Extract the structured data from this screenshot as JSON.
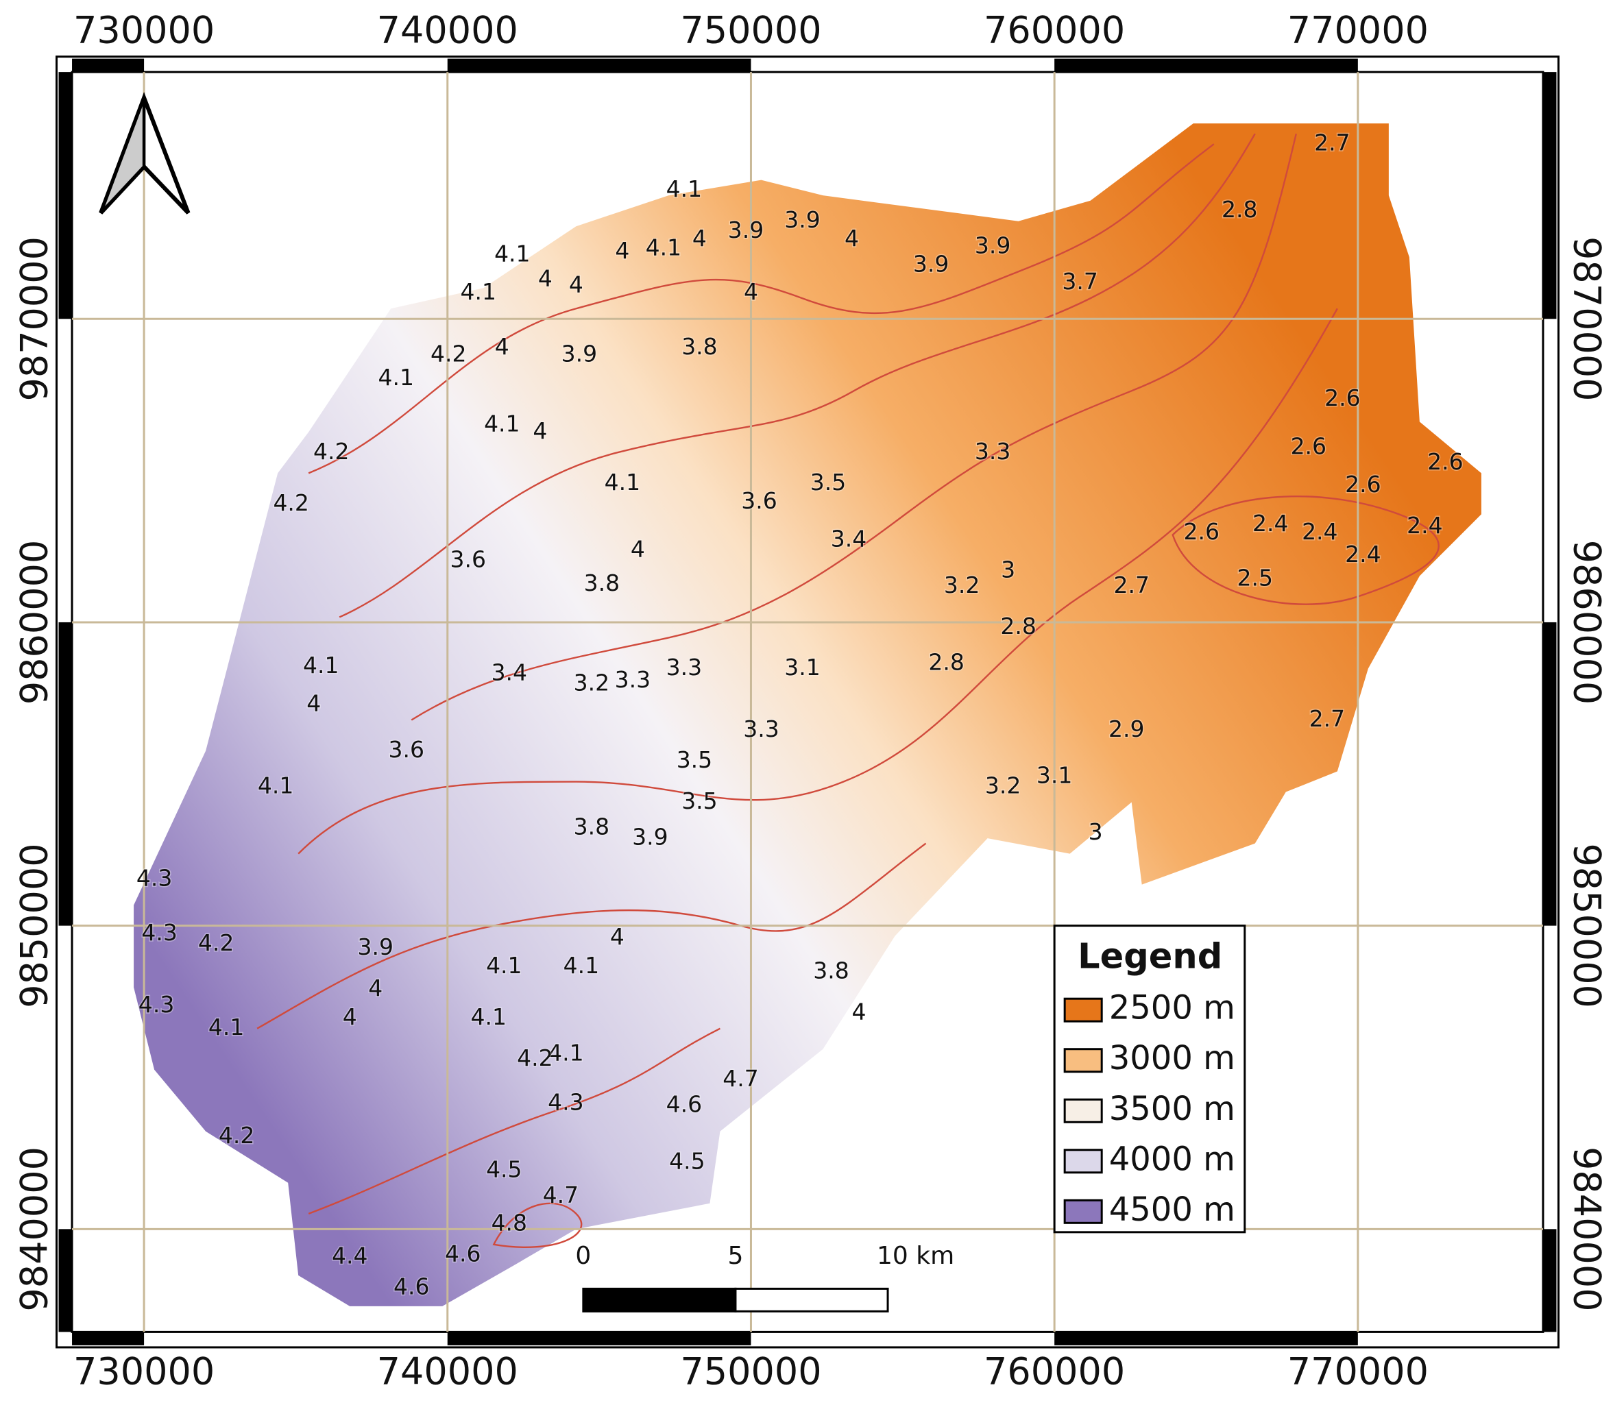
{
  "map": {
    "x_ticks": [
      "730000",
      "740000",
      "750000",
      "760000",
      "770000"
    ],
    "y_ticks": [
      "9870000",
      "9860000",
      "9850000",
      "9840000"
    ],
    "contour_labels": [
      "4.1",
      "4.1",
      "4.1",
      "4",
      "4.1",
      "4",
      "3.9",
      "3.9",
      "4",
      "4",
      "4",
      "3.9",
      "3.9",
      "3.7",
      "4",
      "4.2",
      "4",
      "4.1",
      "3.9",
      "3.8",
      "2.8",
      "2.7",
      "4.2",
      "4.1",
      "4",
      "4.1",
      "3.3",
      "3.5",
      "3.6",
      "4.2",
      "3.4",
      "2.6",
      "2.6",
      "2.6",
      "2.6",
      "2.4",
      "2.4",
      "2.6",
      "2.4",
      "2.4",
      "2.5",
      "2.7",
      "3.6",
      "4",
      "3",
      "3.2",
      "3.8",
      "2.8",
      "2.8",
      "3.1",
      "3.4",
      "3.2",
      "3.3",
      "3.3",
      "4.1",
      "4",
      "2.9",
      "2.7",
      "3.3",
      "3.6",
      "3.5",
      "4.1",
      "3.2",
      "3.1",
      "3.5",
      "3.8",
      "3.9",
      "3",
      "4.3",
      "4.3",
      "4.2",
      "3.9",
      "4",
      "4.1",
      "4.1",
      "3.8",
      "4",
      "4",
      "4",
      "4.3",
      "4.1",
      "4.1",
      "4.1",
      "4.2",
      "4.7",
      "4.6",
      "4.3",
      "4.2",
      "4.5",
      "4.5",
      "4.7",
      "4.8",
      "4.4",
      "4.6",
      "4.6"
    ],
    "legend": {
      "title": "Legend",
      "items": [
        {
          "label": "2500 m",
          "color": "#e6761a"
        },
        {
          "label": "3000 m",
          "color": "#f8be80"
        },
        {
          "label": "3500 m",
          "color": "#f7efe6"
        },
        {
          "label": "4000 m",
          "color": "#dcd8ea"
        },
        {
          "label": "4500 m",
          "color": "#8c77bb"
        }
      ]
    },
    "scale_bar": [
      "0",
      "5",
      "10 km"
    ]
  }
}
